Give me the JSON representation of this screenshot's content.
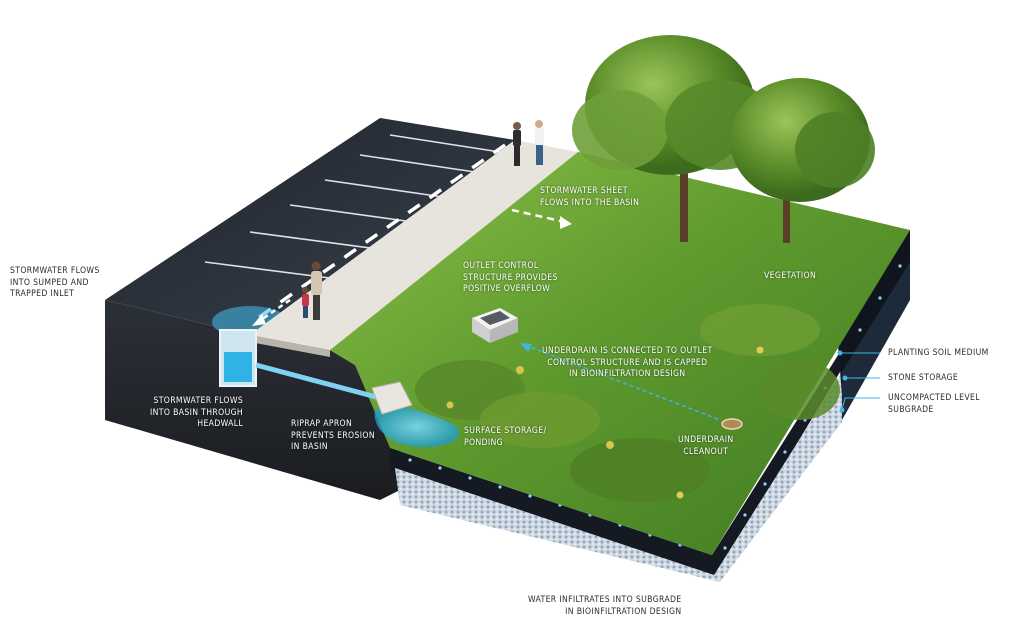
{
  "diagram": {
    "labels": {
      "inlet": "STORMWATER FLOWS\nINTO SUMPED AND\nTRAPPED INLET",
      "sheet_flow": "STORMWATER SHEET\nFLOWS INTO THE BASIN",
      "outlet_control": "OUTLET CONTROL\nSTRUCTURE PROVIDES\nPOSITIVE OVERFLOW",
      "vegetation": "VEGETATION",
      "underdrain": "UNDERDRAIN IS CONNECTED TO OUTLET\nCONTROL STRUCTURE AND IS CAPPED\nIN BIOINFILTRATION DESIGN",
      "headwall": "STORMWATER FLOWS\nINTO BASIN THROUGH\nHEADWALL",
      "riprap": "RIPRAP APRON\nPREVENTS EROSION\nIN BASIN",
      "surface_storage": "SURFACE STORAGE/\nPONDING",
      "cleanout": "UNDERDRAIN\nCLEANOUT",
      "planting_soil": "PLANTING SOIL MEDIUM",
      "stone_storage": "STONE STORAGE",
      "subgrade": "UNCOMPACTED LEVEL\nSUBGRADE",
      "infiltration": "WATER INFILTRATES INTO SUBGRADE\nIN BIOINFILTRATION DESIGN"
    },
    "colors": {
      "grass": "#5f9a2e",
      "grass_light": "#8cc04a",
      "asphalt": "#2f3540",
      "sidewalk": "#e4e1da",
      "soil": "#23262c",
      "stone": "#c9d4df",
      "water": "#33b8e6",
      "leader": "#3fb6e4"
    }
  }
}
